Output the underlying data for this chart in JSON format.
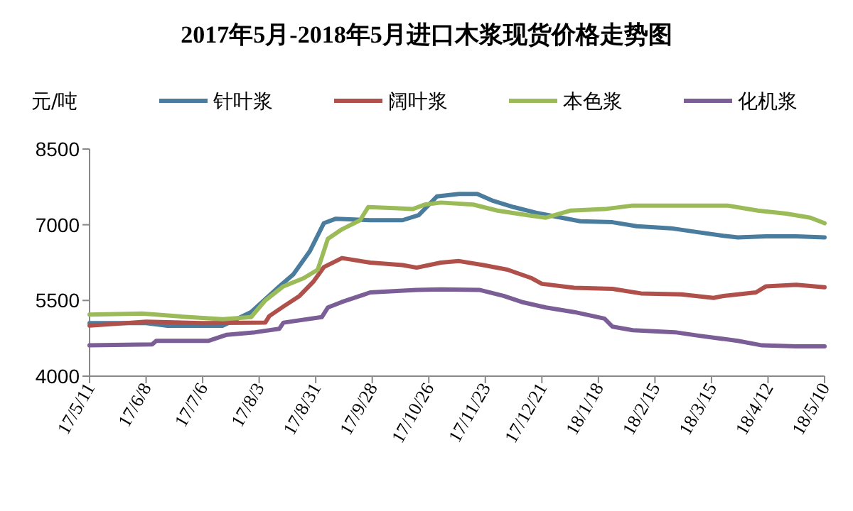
{
  "chart_data": {
    "type": "line",
    "title": "2017年5月-2018年5月进口木浆现货价格走势图",
    "ylabel": "元/吨",
    "legend": "top",
    "xlim": [
      "2017-05-11",
      "2018-05-10"
    ],
    "ylim": [
      4000,
      8500
    ],
    "yticks": [
      4000,
      5500,
      7000,
      8500
    ],
    "xticks": [
      {
        "value": "2017-05-11",
        "label": "17/5/11"
      },
      {
        "value": "2017-06-08",
        "label": "17/6/8"
      },
      {
        "value": "2017-07-06",
        "label": "17/7/6"
      },
      {
        "value": "2017-08-03",
        "label": "17/8/3"
      },
      {
        "value": "2017-08-31",
        "label": "17/8/31"
      },
      {
        "value": "2017-09-28",
        "label": "17/9/28"
      },
      {
        "value": "2017-10-26",
        "label": "17/10/26"
      },
      {
        "value": "2017-11-23",
        "label": "17/11/23"
      },
      {
        "value": "2017-12-21",
        "label": "17/12/21"
      },
      {
        "value": "2018-01-18",
        "label": "18/1/18"
      },
      {
        "value": "2018-02-15",
        "label": "18/2/15"
      },
      {
        "value": "2018-03-15",
        "label": "18/3/15"
      },
      {
        "value": "2018-04-12",
        "label": "18/4/12"
      },
      {
        "value": "2018-05-10",
        "label": "18/5/10"
      }
    ],
    "series": [
      {
        "name": "针叶浆",
        "color": "#4a7c9e",
        "x": [
          "2017-05-11",
          "2017-06-08",
          "2017-06-18",
          "2017-07-16",
          "2017-07-30",
          "2017-08-13",
          "2017-08-20",
          "2017-08-28",
          "2017-09-04",
          "2017-09-10",
          "2017-09-27",
          "2017-10-13",
          "2017-10-21",
          "2017-10-30",
          "2017-11-10",
          "2017-11-19",
          "2017-11-27",
          "2017-12-07",
          "2017-12-19",
          "2017-12-28",
          "2018-01-09",
          "2018-01-25",
          "2018-02-06",
          "2018-02-23",
          "2018-03-07",
          "2018-03-21",
          "2018-03-28",
          "2018-04-11",
          "2018-04-26",
          "2018-05-10"
        ],
        "values": [
          5050,
          5050,
          5000,
          5000,
          5270,
          5780,
          6020,
          6470,
          7030,
          7120,
          7090,
          7090,
          7190,
          7560,
          7610,
          7610,
          7470,
          7350,
          7230,
          7160,
          7070,
          7050,
          6970,
          6930,
          6860,
          6780,
          6750,
          6770,
          6770,
          6750
        ]
      },
      {
        "name": "阔叶浆",
        "color": "#b0504a",
        "x": [
          "2017-05-11",
          "2017-06-08",
          "2017-07-06",
          "2017-08-06",
          "2017-08-08",
          "2017-08-15",
          "2017-08-23",
          "2017-08-30",
          "2017-09-04",
          "2017-09-13",
          "2017-09-27",
          "2017-10-13",
          "2017-10-20",
          "2017-11-01",
          "2017-11-10",
          "2017-11-22",
          "2017-12-04",
          "2017-12-16",
          "2017-12-21",
          "2018-01-06",
          "2018-01-25",
          "2018-02-08",
          "2018-02-28",
          "2018-03-16",
          "2018-03-21",
          "2018-04-06",
          "2018-04-11",
          "2018-04-26",
          "2018-05-10"
        ],
        "values": [
          5000,
          5080,
          5050,
          5060,
          5190,
          5380,
          5590,
          5880,
          6160,
          6340,
          6250,
          6200,
          6150,
          6250,
          6280,
          6200,
          6110,
          5940,
          5830,
          5750,
          5730,
          5640,
          5620,
          5550,
          5590,
          5660,
          5780,
          5810,
          5760
        ]
      },
      {
        "name": "本色浆",
        "color": "#9bbb59",
        "x": [
          "2017-05-11",
          "2017-06-06",
          "2017-06-29",
          "2017-07-16",
          "2017-07-30",
          "2017-08-06",
          "2017-08-15",
          "2017-08-25",
          "2017-09-01",
          "2017-09-06",
          "2017-09-13",
          "2017-09-22",
          "2017-09-26",
          "2017-10-09",
          "2017-10-18",
          "2017-10-24",
          "2017-11-01",
          "2017-11-17",
          "2017-11-29",
          "2017-12-14",
          "2017-12-23",
          "2018-01-04",
          "2018-01-21",
          "2018-02-04",
          "2018-02-28",
          "2018-03-23",
          "2018-04-07",
          "2018-04-21",
          "2018-05-03",
          "2018-05-10"
        ],
        "values": [
          5220,
          5240,
          5170,
          5130,
          5170,
          5500,
          5780,
          5940,
          6110,
          6720,
          6910,
          7090,
          7350,
          7330,
          7310,
          7400,
          7440,
          7400,
          7280,
          7190,
          7140,
          7280,
          7310,
          7380,
          7380,
          7380,
          7280,
          7220,
          7140,
          7030
        ]
      },
      {
        "name": "化机浆",
        "color": "#7a5e95",
        "x": [
          "2017-05-11",
          "2017-06-11",
          "2017-06-13",
          "2017-07-09",
          "2017-07-18",
          "2017-08-01",
          "2017-08-13",
          "2017-08-15",
          "2017-09-03",
          "2017-09-06",
          "2017-09-13",
          "2017-09-22",
          "2017-09-27",
          "2017-10-20",
          "2017-11-01",
          "2017-11-20",
          "2017-12-02",
          "2017-12-11",
          "2017-12-23",
          "2018-01-06",
          "2018-01-21",
          "2018-01-25",
          "2018-02-04",
          "2018-02-25",
          "2018-03-09",
          "2018-03-28",
          "2018-04-09",
          "2018-04-26",
          "2018-05-10"
        ],
        "values": [
          4610,
          4630,
          4700,
          4700,
          4820,
          4870,
          4940,
          5060,
          5170,
          5360,
          5470,
          5590,
          5660,
          5710,
          5720,
          5710,
          5590,
          5470,
          5360,
          5270,
          5140,
          4980,
          4910,
          4870,
          4800,
          4700,
          4610,
          4590,
          4590
        ]
      }
    ]
  }
}
